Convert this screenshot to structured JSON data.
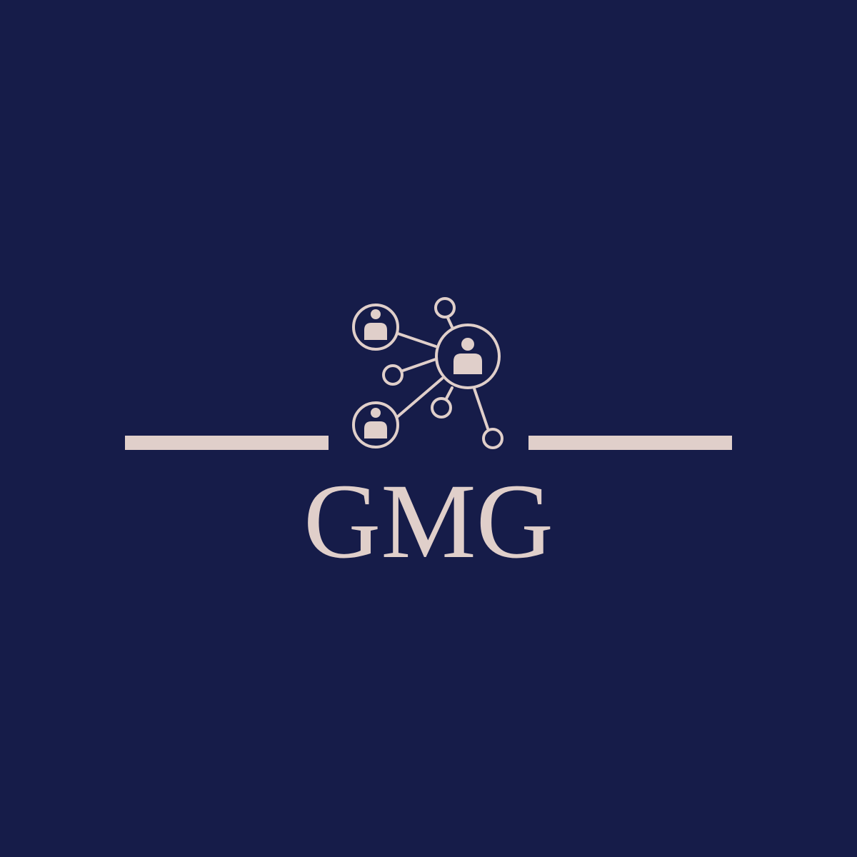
{
  "logo": {
    "brand_name": "GMG",
    "icon": "people-network-icon",
    "colors": {
      "background": "#161c49",
      "foreground": "#e0cfca"
    }
  }
}
